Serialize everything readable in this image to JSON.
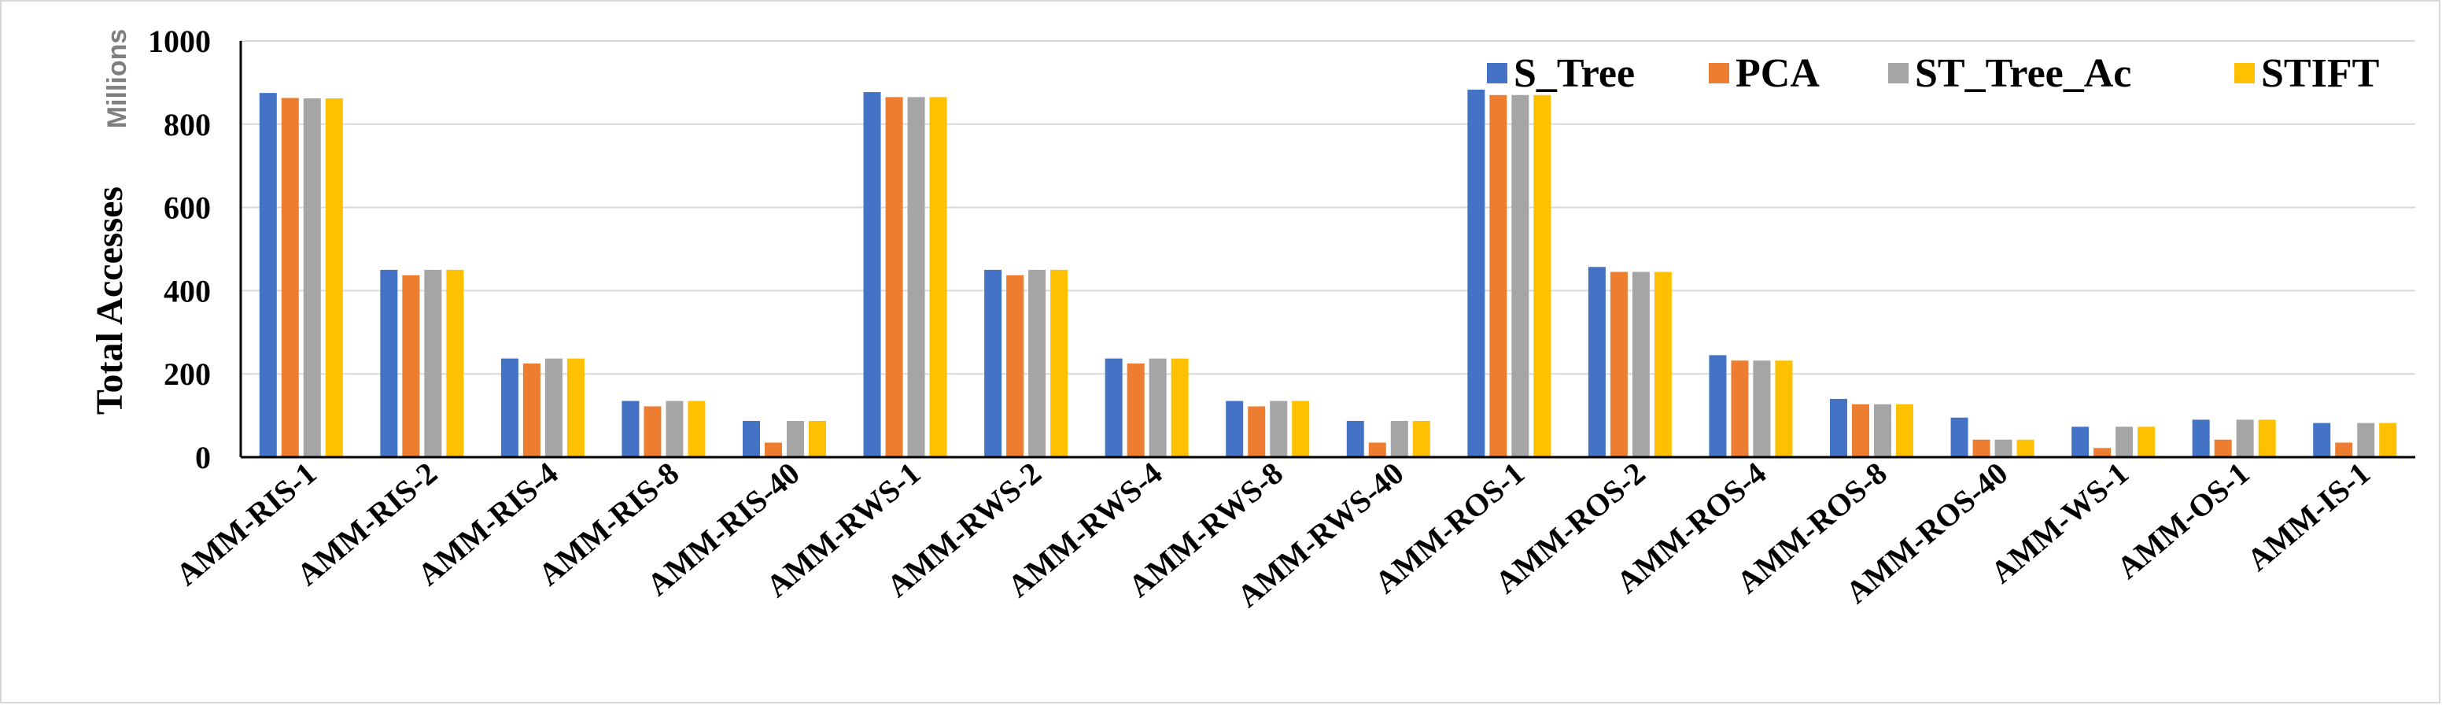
{
  "chart_data": {
    "type": "bar",
    "title": "",
    "xlabel": "",
    "ylabel": "Total Accesses",
    "y_units": "Millions",
    "ylim": [
      0,
      1000
    ],
    "yticks": [
      0,
      200,
      400,
      600,
      800,
      1000
    ],
    "grid": "horizontal",
    "legend_position": "top-right",
    "categories": [
      "AMM-RIS-1",
      "AMM-RIS-2",
      "AMM-RIS-4",
      "AMM-RIS-8",
      "AMM-RIS-40",
      "AMM-RWS-1",
      "AMM-RWS-2",
      "AMM-RWS-4",
      "AMM-RWS-8",
      "AMM-RWS-40",
      "AMM-ROS-1",
      "AMM-ROS-2",
      "AMM-ROS-4",
      "AMM-ROS-8",
      "AMM-ROS-40",
      "AMM-WS-1",
      "AMM-OS-1",
      "AMM-IS-1"
    ],
    "series": [
      {
        "name": "S_Tree",
        "color": "#4472c4",
        "values": [
          875,
          450,
          237,
          135,
          87,
          877,
          450,
          237,
          135,
          87,
          883,
          457,
          245,
          140,
          95,
          73,
          90,
          82
        ]
      },
      {
        "name": "PCA",
        "color": "#ed7d31",
        "values": [
          863,
          437,
          225,
          122,
          35,
          865,
          437,
          225,
          122,
          35,
          870,
          445,
          232,
          127,
          42,
          22,
          42,
          35
        ]
      },
      {
        "name": "ST_Tree_Ac",
        "color": "#a5a5a5",
        "values": [
          862,
          450,
          237,
          135,
          87,
          865,
          450,
          237,
          135,
          87,
          870,
          445,
          232,
          127,
          42,
          73,
          90,
          82
        ]
      },
      {
        "name": "STIFT",
        "color": "#ffc000",
        "values": [
          862,
          450,
          237,
          135,
          87,
          865,
          450,
          237,
          135,
          87,
          870,
          445,
          232,
          127,
          42,
          73,
          90,
          82
        ]
      }
    ]
  }
}
